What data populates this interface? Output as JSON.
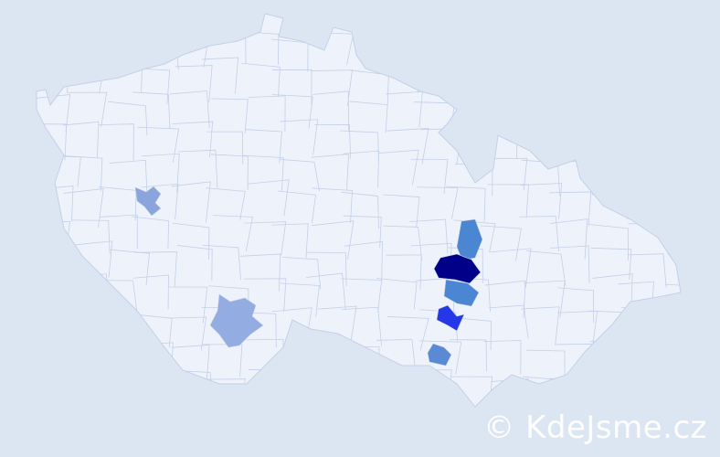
{
  "map": {
    "background_color": "#dce6f3",
    "country_fill": "#eef2fa",
    "border_color": "#c4d0e8",
    "highlighted_regions": [
      {
        "id": "west-small",
        "color": "#8aa4dc"
      },
      {
        "id": "south-large",
        "color": "#93ace2"
      },
      {
        "id": "east-north",
        "color": "#4a86d2"
      },
      {
        "id": "east-center",
        "color": "#000088"
      },
      {
        "id": "east-south",
        "color": "#4a86d2"
      },
      {
        "id": "east-lower",
        "color": "#2438e8"
      },
      {
        "id": "east-bottom",
        "color": "#5a8ad4"
      }
    ]
  },
  "watermark": {
    "text": "© KdeJsme.cz"
  }
}
